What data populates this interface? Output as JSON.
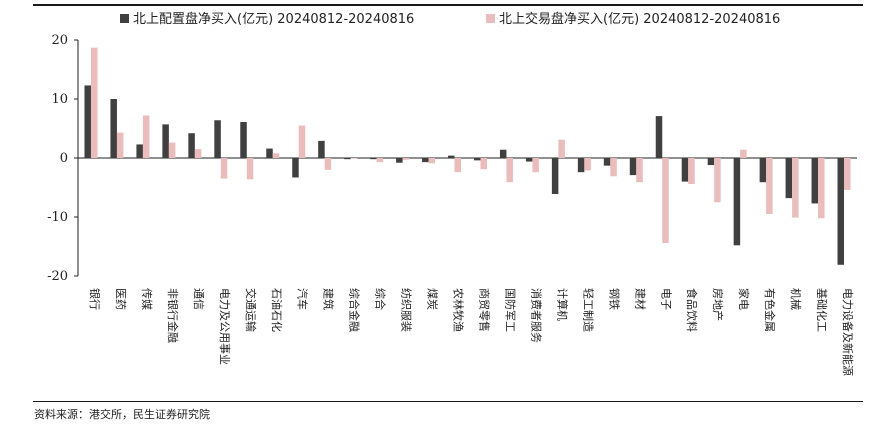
{
  "chart_data": {
    "type": "bar",
    "legend_position": "top",
    "grid": false,
    "ylim": [
      -20,
      20
    ],
    "yticks": [
      "20",
      "10",
      "0",
      "-10",
      "-20"
    ],
    "categories": [
      "银行",
      "医药",
      "传媒",
      "非银行金融",
      "通信",
      "电力及公用事业",
      "交通运输",
      "石油石化",
      "汽车",
      "建筑",
      "综合金融",
      "综合",
      "纺织服装",
      "煤炭",
      "农林牧渔",
      "商贸零售",
      "国防军工",
      "消费者服务",
      "计算机",
      "轻工制造",
      "钢铁",
      "建材",
      "电子",
      "食品饮料",
      "房地产",
      "家电",
      "有色金属",
      "机械",
      "基础化工",
      "电力设备及新能源"
    ],
    "series": [
      {
        "name": "北上配置盘净买入(亿元) 20240812-20240816",
        "color": "#404040",
        "values": [
          12.3,
          10.0,
          2.3,
          5.7,
          4.2,
          6.4,
          6.1,
          1.6,
          -3.3,
          2.9,
          -0.2,
          -0.2,
          -0.8,
          -0.7,
          0.4,
          -0.4,
          1.4,
          -0.6,
          -6.1,
          -2.4,
          -1.3,
          -2.9,
          7.1,
          -4.0,
          -1.2,
          -14.8,
          -4.1,
          -6.8,
          -7.7,
          -18.1
        ]
      },
      {
        "name": "北上交易盘净买入(亿元) 20240812-20240816",
        "color": "#eabcbc",
        "values": [
          18.7,
          4.3,
          7.2,
          2.6,
          1.5,
          -3.5,
          -3.6,
          0.8,
          5.5,
          -2.0,
          -0.1,
          -0.7,
          -0.3,
          -0.9,
          -2.4,
          -1.9,
          -4.1,
          -2.4,
          3.1,
          -2.1,
          -3.1,
          -4.1,
          -14.4,
          -4.4,
          -7.5,
          1.4,
          -9.5,
          -10.1,
          -10.2,
          -5.4
        ]
      }
    ]
  },
  "source": "资料来源：港交所，民生证券研究院"
}
